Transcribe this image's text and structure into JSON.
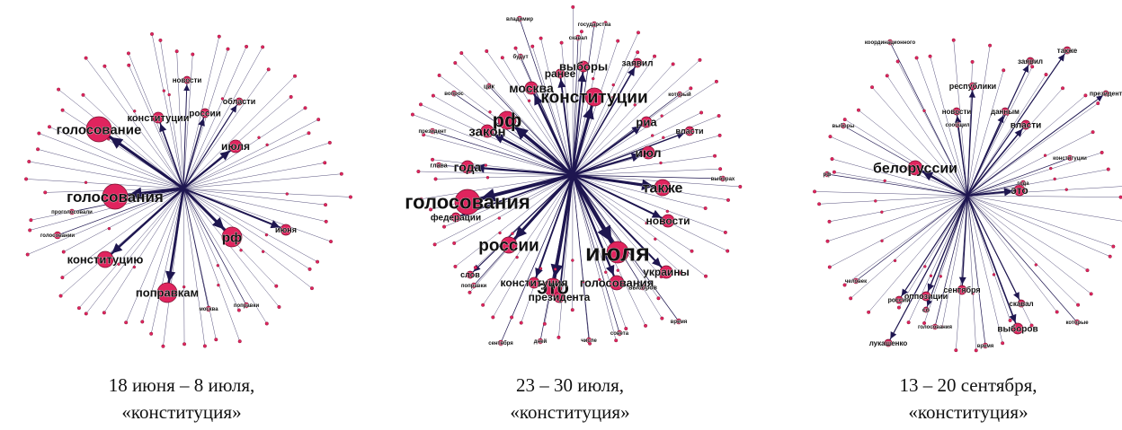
{
  "colors": {
    "node_fill": "#e0245e",
    "node_stroke": "#7a0f2e",
    "edge": "#1e1650",
    "text": "#111111"
  },
  "panels": [
    {
      "caption_line1": "18 июня – 8 июля,",
      "caption_line2": "«конституция»",
      "labels": [
        "голосование",
        "голосования",
        "конституцию",
        "поправкам",
        "рф",
        "июля",
        "конституции",
        "россии",
        "области",
        "новости",
        "июня"
      ],
      "small_labels": [
        "голосовании",
        "проголосовали",
        "москва",
        "поправки"
      ]
    },
    {
      "caption_line1": "23 – 30 июля,",
      "caption_line2": "«конституция»",
      "labels": [
        "голосования",
        "июля",
        "это",
        "рф",
        "конституции",
        "россии",
        "также",
        "москва",
        "закон",
        "года",
        "новости",
        "выборы",
        "ранее",
        "заявил",
        "федерации",
        "украины",
        "голосования",
        "конституция",
        "президента",
        "риа",
        "июл",
        "власти",
        "слов"
      ],
      "small_labels": [
        "цик",
        "вопрос",
        "президент",
        "глава",
        "выборов",
        "время",
        "совета",
        "числе",
        "дней",
        "сентября",
        "поправки",
        "будут",
        "государства",
        "владимир",
        "скавал",
        "который",
        "выборах"
      ]
    },
    {
      "caption_line1": "13 – 20 сентября,",
      "caption_line2": "«конституция»",
      "labels": [
        "белоруссии",
        "это",
        "республики",
        "власти",
        "также",
        "новости",
        "данным",
        "заявил",
        "сентября",
        "оппозиции",
        "россии",
        "выборов",
        "лукашенко",
        "скавал",
        "президент",
        "со"
      ],
      "small_labels": [
        "координационного",
        "выборы",
        "человек",
        "голосования",
        "года",
        "конституции",
        "сообщил",
        "которые",
        "время",
        "рф"
      ]
    }
  ]
}
